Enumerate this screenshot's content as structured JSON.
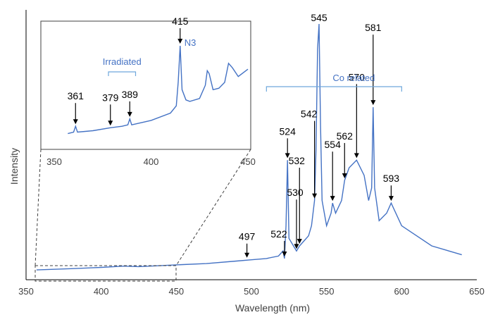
{
  "chart_data": {
    "type": "line",
    "xlabel": "Wavelength (nm)",
    "ylabel": "Intensity",
    "xlim": [
      350,
      650
    ],
    "xticks": [
      "350",
      "400",
      "450",
      "500",
      "550",
      "600",
      "650"
    ],
    "y_ticks_shown": false,
    "grid": false,
    "colors": {
      "line": "#4472c4",
      "bracket": "#6fa8dc",
      "arrows": "#000000"
    },
    "series": [
      {
        "values": [
          [
            357,
            0.025
          ],
          [
            380,
            0.03
          ],
          [
            400,
            0.035
          ],
          [
            415,
            0.04
          ],
          [
            425,
            0.038
          ],
          [
            450,
            0.045
          ],
          [
            470,
            0.05
          ],
          [
            490,
            0.06
          ],
          [
            500,
            0.065
          ],
          [
            510,
            0.07
          ],
          [
            518,
            0.08
          ],
          [
            521,
            0.1
          ],
          [
            522,
            0.07
          ],
          [
            523,
            0.2
          ],
          [
            524,
            0.46
          ],
          [
            525,
            0.15
          ],
          [
            528,
            0.12
          ],
          [
            530,
            0.1
          ],
          [
            532,
            0.12
          ],
          [
            535,
            0.14
          ],
          [
            538,
            0.16
          ],
          [
            540,
            0.2
          ],
          [
            542,
            0.3
          ],
          [
            543,
            0.5
          ],
          [
            544,
            0.9
          ],
          [
            545,
            1.0
          ],
          [
            546,
            0.6
          ],
          [
            547,
            0.3
          ],
          [
            550,
            0.2
          ],
          [
            553,
            0.25
          ],
          [
            554,
            0.29
          ],
          [
            556,
            0.25
          ],
          [
            560,
            0.3
          ],
          [
            562,
            0.38
          ],
          [
            565,
            0.43
          ],
          [
            570,
            0.46
          ],
          [
            575,
            0.4
          ],
          [
            578,
            0.3
          ],
          [
            580,
            0.35
          ],
          [
            581,
            0.67
          ],
          [
            582,
            0.35
          ],
          [
            585,
            0.22
          ],
          [
            590,
            0.25
          ],
          [
            593,
            0.29
          ],
          [
            600,
            0.2
          ],
          [
            620,
            0.12
          ],
          [
            640,
            0.085
          ]
        ]
      }
    ],
    "annotations": [
      {
        "label": "497",
        "x": 497,
        "y": 0.065
      },
      {
        "label": "522",
        "x": 522,
        "y": 0.07
      },
      {
        "label": "524",
        "x": 524,
        "y": 0.46
      },
      {
        "label": "530",
        "x": 530,
        "y": 0.1
      },
      {
        "label": "532",
        "x": 532,
        "y": 0.12
      },
      {
        "label": "542",
        "x": 542,
        "y": 0.3
      },
      {
        "label": "545",
        "x": 545,
        "y": 1.0
      },
      {
        "label": "554",
        "x": 554,
        "y": 0.29
      },
      {
        "label": "562",
        "x": 562,
        "y": 0.38
      },
      {
        "label": "570",
        "x": 570,
        "y": 0.46
      },
      {
        "label": "581",
        "x": 581,
        "y": 0.67
      },
      {
        "label": "593",
        "x": 593,
        "y": 0.29
      }
    ],
    "co_related": {
      "label": "Co related",
      "range": [
        510,
        600
      ]
    },
    "inset": {
      "xlim": [
        350,
        450
      ],
      "xticks": [
        "350",
        "400",
        "450"
      ],
      "values": [
        [
          357,
          0.05
        ],
        [
          360,
          0.06
        ],
        [
          361,
          0.1
        ],
        [
          362,
          0.06
        ],
        [
          370,
          0.07
        ],
        [
          379,
          0.09
        ],
        [
          385,
          0.1
        ],
        [
          388,
          0.11
        ],
        [
          389,
          0.15
        ],
        [
          390,
          0.11
        ],
        [
          400,
          0.14
        ],
        [
          410,
          0.19
        ],
        [
          413,
          0.24
        ],
        [
          414,
          0.4
        ],
        [
          415,
          0.65
        ],
        [
          416,
          0.35
        ],
        [
          418,
          0.28
        ],
        [
          420,
          0.27
        ],
        [
          425,
          0.29
        ],
        [
          428,
          0.38
        ],
        [
          429,
          0.48
        ],
        [
          430,
          0.46
        ],
        [
          432,
          0.35
        ],
        [
          435,
          0.36
        ],
        [
          438,
          0.4
        ],
        [
          440,
          0.53
        ],
        [
          442,
          0.5
        ],
        [
          445,
          0.44
        ],
        [
          450,
          0.49
        ]
      ],
      "annotations": [
        {
          "label": "361",
          "x": 361,
          "y": 0.1
        },
        {
          "label": "379",
          "x": 379,
          "y": 0.09
        },
        {
          "label": "389",
          "x": 389,
          "y": 0.15
        },
        {
          "label": "415",
          "x": 415,
          "y": 0.65
        }
      ],
      "n3_label": "N3",
      "irradiated": {
        "label": "Irradiated",
        "range": [
          378,
          392
        ]
      }
    }
  }
}
